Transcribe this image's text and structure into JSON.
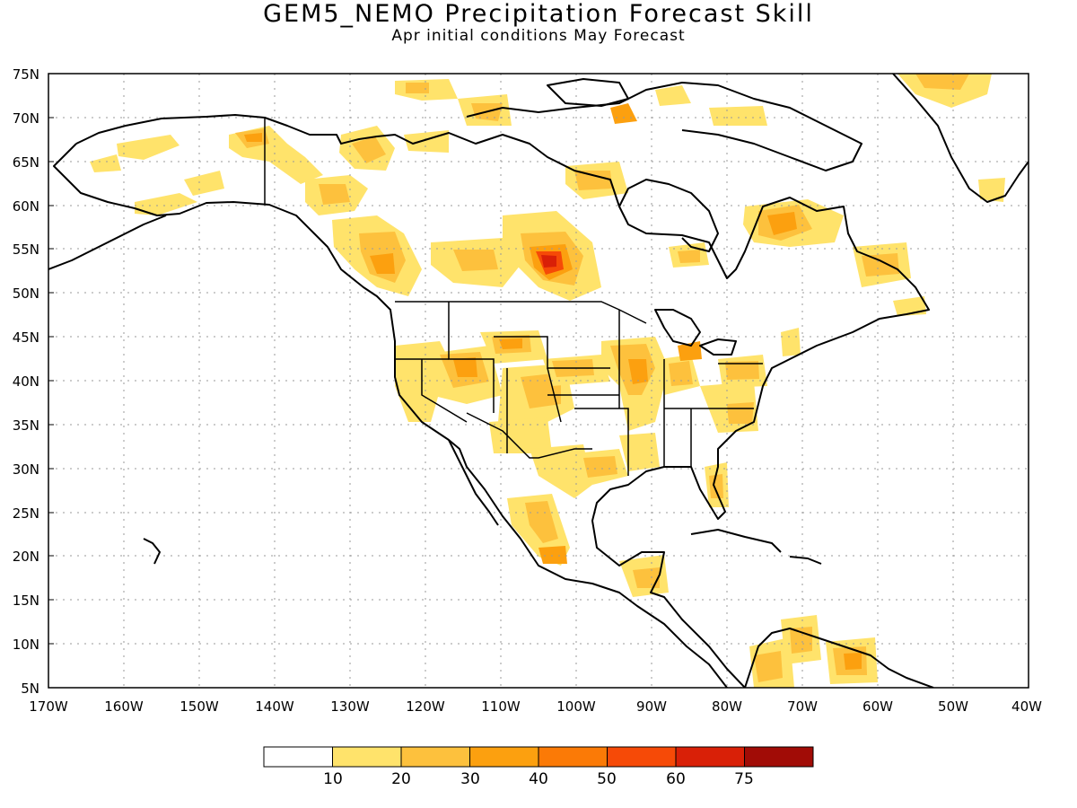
{
  "title": "GEM5_NEMO Precipitation Forecast Skill",
  "subtitle": "Apr initial conditions   May Forecast",
  "map": {
    "region": "North America",
    "lon_range": [
      -170,
      -40
    ],
    "lat_range": [
      5,
      75
    ],
    "grid": "dotted",
    "field": "precipitation forecast skill"
  },
  "axes": {
    "lat_ticks": [
      "75N",
      "70N",
      "65N",
      "60N",
      "55N",
      "50N",
      "45N",
      "40N",
      "35N",
      "30N",
      "25N",
      "20N",
      "15N",
      "10N",
      "5N"
    ],
    "lon_ticks": [
      "170W",
      "160W",
      "150W",
      "140W",
      "130W",
      "120W",
      "110W",
      "100W",
      "90W",
      "80W",
      "70W",
      "60W",
      "50W",
      "40W"
    ]
  },
  "colorbar": {
    "colors": [
      "#ffffff",
      "#ffe36b",
      "#fdc13d",
      "#fca00f",
      "#fb7a06",
      "#f64a07",
      "#d92007",
      "#a10c06"
    ],
    "labels": [
      "10",
      "20",
      "30",
      "40",
      "50",
      "60",
      "75"
    ]
  },
  "palette": {
    "c1": "#ffe36b",
    "c2": "#fdc13d",
    "c3": "#fca00f",
    "c4": "#fb7a06",
    "c5": "#f64a07",
    "c6": "#d92007"
  }
}
